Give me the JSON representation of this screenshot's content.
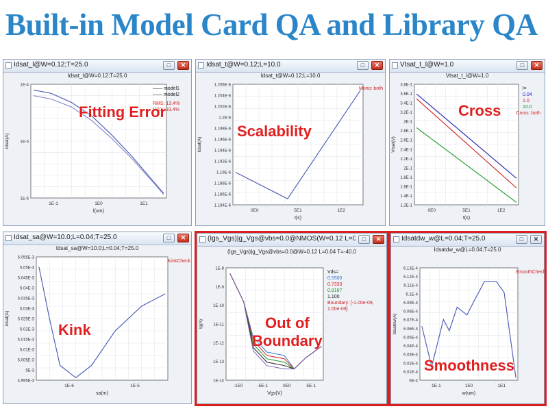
{
  "page_title": "Built-in Model Card QA and Library QA",
  "colors": {
    "title": "#2a86c8",
    "highlight": "#d82020",
    "label": "#e02020"
  },
  "icons": {
    "minimize": "minimize-icon",
    "close": "close-icon"
  },
  "windows": [
    {
      "title": "Idsat_l@W=0.12;T=25.0",
      "plot_title": "Idsat_l@W=0.12;T=25.0",
      "label": "Fitting Error",
      "ylabel": "Idsat(A)",
      "xlabel": "l(um)",
      "yticks": [
        "1E-4",
        "1E-5",
        "1E-6"
      ],
      "xticks": [
        "1E-1",
        "1E0",
        "1E1"
      ],
      "legend": [
        "model1",
        "model2"
      ],
      "notes": [
        "RMS: 13.4%",
        "MAX: 33.4%"
      ],
      "highlighted": false
    },
    {
      "title": "Idsat_t@W=0.12;L=10.0",
      "plot_title": "Idsat_t@W=0.12;L=10.0",
      "label": "Scalability",
      "ylabel": "Idsat(A)",
      "xlabel": "t(s)",
      "yticks": [
        "1.206E-6",
        "1.204E-6",
        "1.202E-6",
        "1.2E-6",
        "1.198E-6",
        "1.196E-6",
        "1.194E-6",
        "1.192E-6",
        "1.19E-6",
        "1.188E-6",
        "1.186E-6",
        "1.184E-6"
      ],
      "xticks": [
        "0E0",
        "5E1",
        "1E2"
      ],
      "legend": [],
      "notes": [
        "Mono: both"
      ],
      "highlighted": false
    },
    {
      "title": "Vtsat_t_l@W=1.0",
      "plot_title": "Vtsat_t_l@W=1.0",
      "label": "Cross",
      "ylabel": "Vtsat(V)",
      "xlabel": "t(s)",
      "yticks": [
        "3.8E-1",
        "3.6E-1",
        "3.4E-1",
        "3.2E-1",
        "3E-1",
        "2.8E-1",
        "2.6E-1",
        "2.4E-1",
        "2.2E-1",
        "2E-1",
        "1.8E-1",
        "1.6E-1",
        "1.4E-1",
        "1.2E-1"
      ],
      "xticks": [
        "0E0",
        "5E1",
        "1E2"
      ],
      "legend": [
        "l=",
        "0.04",
        "1.0",
        "10.0"
      ],
      "notes": [
        "Cross: both"
      ],
      "highlighted": false
    },
    {
      "title": "Idsat_sa@W=10.0;L=0.04;T=25.0",
      "plot_title": "Idsat_sa@W=10.0;L=0.04;T=25.0",
      "label": "Kink",
      "ylabel": "Idsat(A)",
      "xlabel": "sa(m)",
      "yticks": [
        "5.055E-3",
        "5.05E-3",
        "5.045E-3",
        "5.04E-3",
        "5.035E-3",
        "5.03E-3",
        "5.025E-3",
        "5.02E-3",
        "5.015E-3",
        "5.01E-3",
        "5.005E-3",
        "5E-3",
        "4.995E-3"
      ],
      "xticks": [
        "1E-6",
        "1E-5"
      ],
      "legend": [],
      "notes": [
        "KinkCheck"
      ],
      "highlighted": false
    },
    {
      "title": "(Igs_Vgs)|g_Vgs@vbs=0.0@NMOS(W=0.12 L=0.04 T=-40.0)",
      "plot_title": "(Igs_Vgs)|g_Vgs@vbs=0.0@W=0.12 L=0.04 T=-40.0",
      "label": "Out of Boundary",
      "label_lines": [
        "Out of",
        "Boundary"
      ],
      "ylabel": "Ig(A)",
      "xlabel": "Vgs(V)",
      "yticks": [
        "1E-8",
        "1E-9",
        "1E-10",
        "1E-11",
        "1E-12",
        "1E-13",
        "1E-14"
      ],
      "xticks": [
        "-1E0",
        "-5E-1",
        "0E0",
        "5E-1"
      ],
      "legend": [
        "Vds=",
        "0.5500",
        "0.7333",
        "0.9167",
        "1.100"
      ],
      "notes": [
        "Boundary: [-1.00e-09, 1.00e-09]"
      ],
      "highlighted": true
    },
    {
      "title": "Idsatdw_w@L=0.04;T=25.0",
      "plot_title": "Idsatdw_w@L=0.04;T=25.0",
      "label": "Smoothness",
      "ylabel": "Idsatdw(A)",
      "xlabel": "w(um)",
      "yticks": [
        "6.13E-4",
        "6.12E-4",
        "6.11E-4",
        "6.1E-4",
        "6.09E-4",
        "6.08E-4",
        "6.07E-4",
        "6.06E-4",
        "6.05E-4",
        "6.04E-4",
        "6.03E-4",
        "6.02E-4",
        "6.01E-4",
        "6E-4"
      ],
      "xticks": [
        "1E-1",
        "1E0",
        "1E1"
      ],
      "legend": [],
      "notes": [
        "SmoothCheck"
      ],
      "highlighted": true
    }
  ]
}
